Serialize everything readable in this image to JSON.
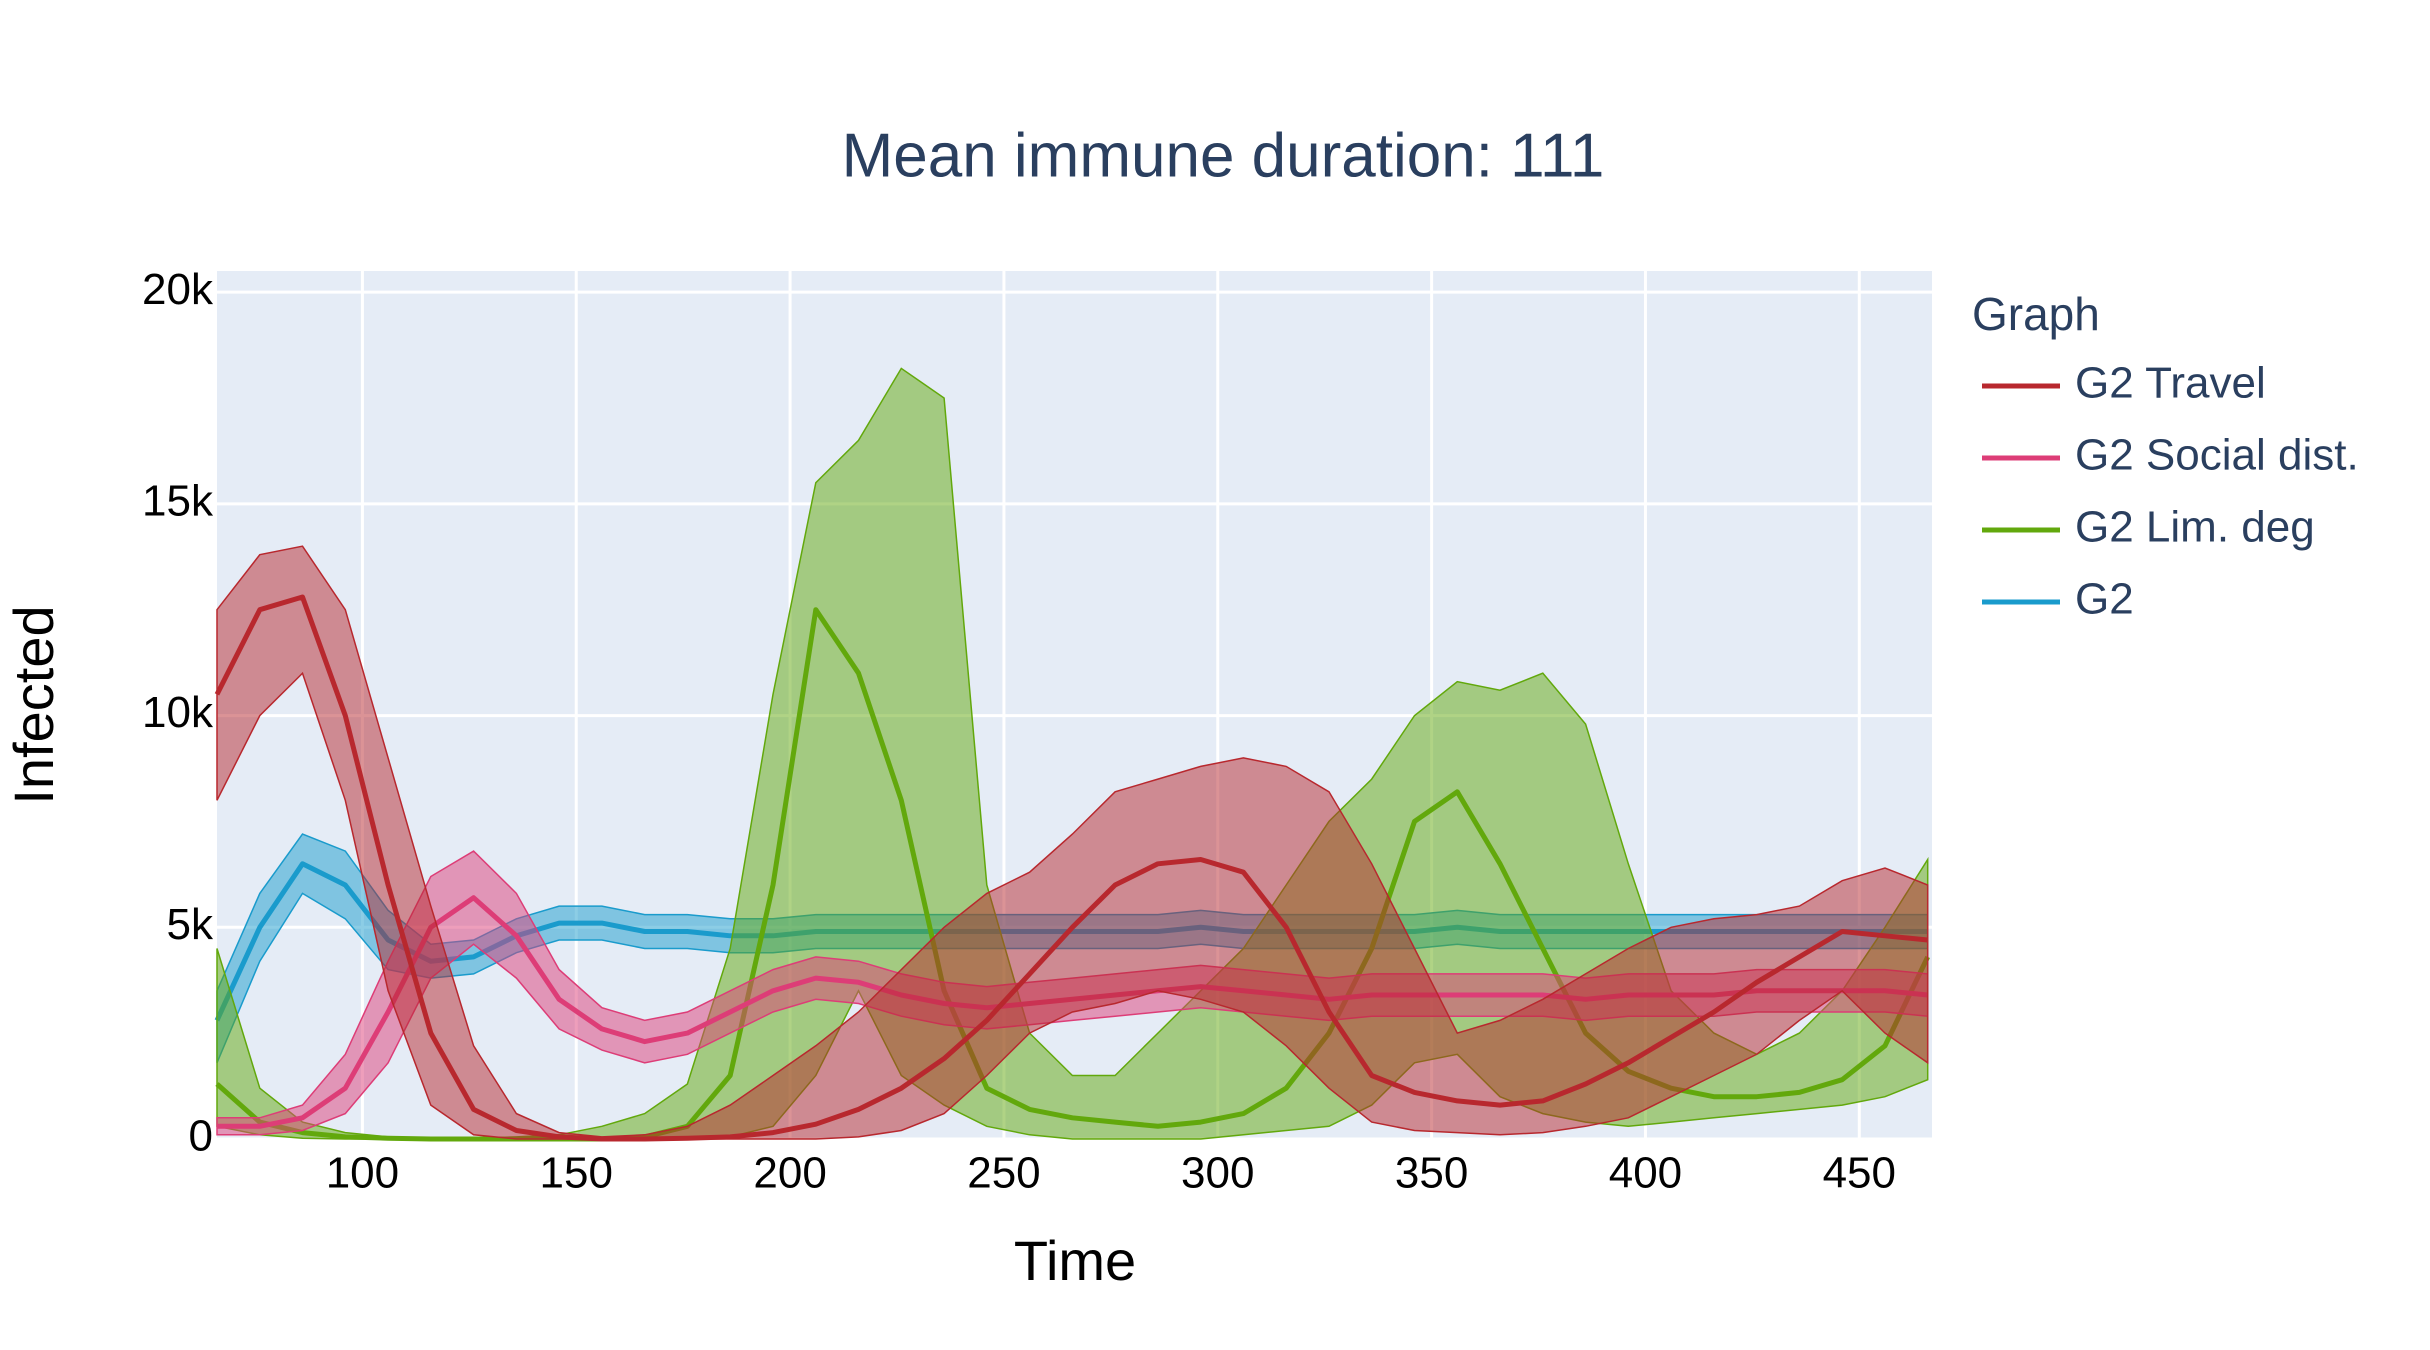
{
  "chart_data": {
    "type": "line",
    "title": "Mean immune duration: 111",
    "x_label": "Time",
    "y_label": "Infected",
    "legend_title": "Graph",
    "xlim": [
      66,
      467
    ],
    "ylim": [
      0,
      20500
    ],
    "xticks": [
      100,
      150,
      200,
      250,
      300,
      350,
      400,
      450
    ],
    "yticks": [
      0,
      {
        "value": 5000,
        "label": "5k"
      },
      {
        "value": 10000,
        "label": "10k"
      },
      {
        "value": 15000,
        "label": "15k"
      },
      {
        "value": 20000,
        "label": "20k"
      }
    ],
    "grid": true,
    "legend": "right",
    "x": [
      66,
      76,
      86,
      96,
      106,
      116,
      126,
      136,
      146,
      156,
      166,
      176,
      186,
      196,
      206,
      216,
      226,
      236,
      246,
      256,
      266,
      276,
      286,
      296,
      306,
      316,
      326,
      336,
      346,
      356,
      366,
      376,
      386,
      396,
      406,
      416,
      426,
      436,
      446,
      456,
      466
    ],
    "series": [
      {
        "name": "G2 Travel",
        "color": "#b8282e",
        "values": [
          10500,
          12500,
          12800,
          10000,
          6000,
          2500,
          700,
          200,
          50,
          0,
          0,
          20,
          50,
          150,
          350,
          700,
          1200,
          1900,
          2800,
          3900,
          5000,
          6000,
          6500,
          6600,
          6300,
          5000,
          3000,
          1500,
          1100,
          900,
          800,
          900,
          1300,
          1800,
          2400,
          3000,
          3700,
          4300,
          4900,
          4800,
          4700
        ],
        "upper": [
          12500,
          13800,
          14000,
          12500,
          9000,
          5500,
          2200,
          600,
          150,
          50,
          100,
          300,
          800,
          1500,
          2200,
          3000,
          4000,
          5000,
          5800,
          6300,
          7200,
          8200,
          8500,
          8800,
          9000,
          8800,
          8200,
          6500,
          4500,
          2500,
          2800,
          3300,
          3900,
          4500,
          5000,
          5200,
          5300,
          5500,
          6100,
          6400,
          6000
        ],
        "lower": [
          8000,
          10000,
          11000,
          8000,
          3500,
          800,
          100,
          0,
          0,
          0,
          0,
          0,
          0,
          0,
          0,
          50,
          200,
          600,
          1500,
          2500,
          3000,
          3200,
          3500,
          3300,
          3000,
          2200,
          1200,
          400,
          200,
          150,
          100,
          150,
          300,
          500,
          1000,
          1500,
          2000,
          2800,
          3500,
          2500,
          1800
        ]
      },
      {
        "name": "G2 Social dist.",
        "color": "#dd3d77",
        "values": [
          300,
          300,
          500,
          1200,
          3000,
          5000,
          5700,
          4800,
          3300,
          2600,
          2300,
          2500,
          3000,
          3500,
          3800,
          3700,
          3400,
          3200,
          3100,
          3200,
          3300,
          3400,
          3500,
          3600,
          3500,
          3400,
          3300,
          3400,
          3400,
          3400,
          3400,
          3400,
          3300,
          3400,
          3400,
          3400,
          3500,
          3500,
          3500,
          3500,
          3400
        ],
        "upper": [
          500,
          500,
          800,
          2000,
          4200,
          6200,
          6800,
          5800,
          4000,
          3100,
          2800,
          3000,
          3500,
          4000,
          4300,
          4200,
          3900,
          3700,
          3600,
          3700,
          3800,
          3900,
          4000,
          4100,
          4000,
          3900,
          3800,
          3900,
          3900,
          3900,
          3900,
          3900,
          3800,
          3900,
          3900,
          3900,
          4000,
          4000,
          4000,
          4000,
          3900
        ],
        "lower": [
          100,
          100,
          200,
          600,
          1800,
          3800,
          4600,
          3800,
          2600,
          2100,
          1800,
          2000,
          2500,
          3000,
          3300,
          3200,
          2900,
          2700,
          2600,
          2700,
          2800,
          2900,
          3000,
          3100,
          3000,
          2900,
          2800,
          2900,
          2900,
          2900,
          2900,
          2900,
          2800,
          2900,
          2900,
          2900,
          3000,
          3000,
          3000,
          3000,
          2900
        ]
      },
      {
        "name": "G2 Lim. deg",
        "color": "#62a80c",
        "values": [
          1300,
          400,
          150,
          50,
          20,
          0,
          0,
          0,
          0,
          0,
          50,
          300,
          1500,
          6000,
          12500,
          11000,
          8000,
          3500,
          1200,
          700,
          500,
          400,
          300,
          400,
          600,
          1200,
          2500,
          4500,
          7500,
          8200,
          6500,
          4500,
          2500,
          1600,
          1200,
          1000,
          1000,
          1100,
          1400,
          2200,
          4300
        ],
        "upper": [
          4500,
          1200,
          400,
          150,
          50,
          20,
          20,
          50,
          100,
          300,
          600,
          1300,
          4500,
          10500,
          15500,
          16500,
          18200,
          17500,
          6000,
          2500,
          1500,
          1500,
          2500,
          3500,
          4500,
          6000,
          7500,
          8500,
          10000,
          10800,
          10600,
          11000,
          9800,
          6500,
          3500,
          2500,
          2000,
          2500,
          3500,
          5000,
          6600
        ],
        "lower": [
          300,
          100,
          20,
          0,
          0,
          0,
          0,
          0,
          0,
          0,
          0,
          0,
          50,
          300,
          1500,
          3500,
          1500,
          800,
          300,
          100,
          0,
          0,
          0,
          0,
          100,
          200,
          300,
          800,
          1800,
          2000,
          1000,
          600,
          400,
          300,
          400,
          500,
          600,
          700,
          800,
          1000,
          1400
        ]
      },
      {
        "name": "G2",
        "color": "#1a9bcc",
        "values": [
          2800,
          5000,
          6500,
          6000,
          4700,
          4200,
          4300,
          4800,
          5100,
          5100,
          4900,
          4900,
          4800,
          4800,
          4900,
          4900,
          4900,
          4900,
          4900,
          4900,
          4900,
          4900,
          4900,
          5000,
          4900,
          4900,
          4900,
          4900,
          4900,
          5000,
          4900,
          4900,
          4900,
          4900,
          4900,
          4900,
          4900,
          4900,
          4900,
          4900,
          4900
        ],
        "upper": [
          3500,
          5800,
          7200,
          6800,
          5400,
          4600,
          4700,
          5200,
          5500,
          5500,
          5300,
          5300,
          5200,
          5200,
          5300,
          5300,
          5300,
          5300,
          5300,
          5300,
          5300,
          5300,
          5300,
          5400,
          5300,
          5300,
          5300,
          5300,
          5300,
          5400,
          5300,
          5300,
          5300,
          5300,
          5300,
          5300,
          5300,
          5300,
          5300,
          5300,
          5300
        ],
        "lower": [
          1800,
          4200,
          5800,
          5200,
          4000,
          3800,
          3900,
          4400,
          4700,
          4700,
          4500,
          4500,
          4400,
          4400,
          4500,
          4500,
          4500,
          4500,
          4500,
          4500,
          4500,
          4500,
          4500,
          4600,
          4500,
          4500,
          4500,
          4500,
          4500,
          4600,
          4500,
          4500,
          4500,
          4500,
          4500,
          4500,
          4500,
          4500,
          4500,
          4500,
          4500
        ]
      }
    ]
  }
}
